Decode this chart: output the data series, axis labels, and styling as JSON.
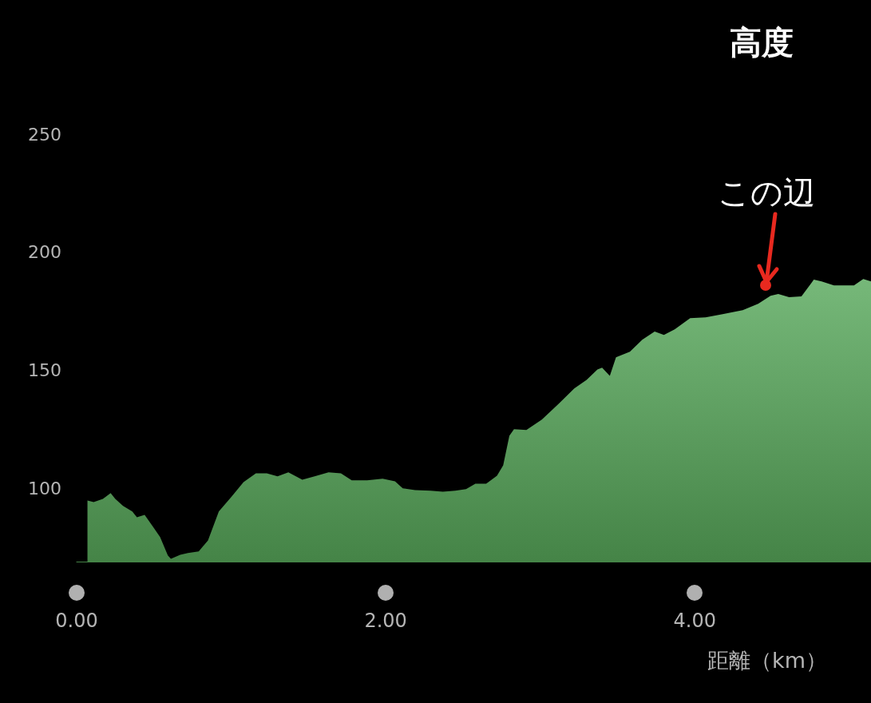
{
  "chart_data": {
    "type": "area",
    "title": "高度",
    "xlabel": "距離（km）",
    "x": [
      0.07,
      0.11,
      0.17,
      0.22,
      0.25,
      0.3,
      0.36,
      0.39,
      0.44,
      0.49,
      0.54,
      0.59,
      0.61,
      0.67,
      0.72,
      0.79,
      0.85,
      0.92,
      1.0,
      1.08,
      1.16,
      1.23,
      1.3,
      1.37,
      1.46,
      1.54,
      1.63,
      1.71,
      1.78,
      1.88,
      1.98,
      2.06,
      2.11,
      2.19,
      2.29,
      2.37,
      2.45,
      2.52,
      2.58,
      2.65,
      2.72,
      2.76,
      2.8,
      2.83,
      2.91,
      3.01,
      3.12,
      3.22,
      3.3,
      3.37,
      3.4,
      3.45,
      3.49,
      3.58,
      3.66,
      3.74,
      3.8,
      3.87,
      3.97,
      4.07,
      4.18,
      4.31,
      4.41,
      4.49,
      4.54,
      4.61,
      4.69,
      4.77,
      4.82,
      4.9,
      5.03,
      5.09,
      5.14
    ],
    "series": [
      {
        "color": "#58a95b",
        "values": [
          94.9,
          94.2,
          95.6,
          98.0,
          95.6,
          92.6,
          90.2,
          87.8,
          88.8,
          84.1,
          79.4,
          71.6,
          70.2,
          71.9,
          72.6,
          73.3,
          78.0,
          90.2,
          96.3,
          102.7,
          106.4,
          106.4,
          105.1,
          106.8,
          103.7,
          105.1,
          106.8,
          106.4,
          103.4,
          103.4,
          104.1,
          103.0,
          100.0,
          99.3,
          99.0,
          98.6,
          99.0,
          99.7,
          102.0,
          102.0,
          105.4,
          109.8,
          122.3,
          125.1,
          124.7,
          129.1,
          135.9,
          142.3,
          146.0,
          150.4,
          151.1,
          147.7,
          155.5,
          157.9,
          163.0,
          166.4,
          165.0,
          167.4,
          172.1,
          172.4,
          173.8,
          175.5,
          178.2,
          181.6,
          182.3,
          181.0,
          181.3,
          188.4,
          187.7,
          186.0,
          186.0,
          188.7,
          187.7
        ]
      }
    ],
    "xlim": [
      0,
      5.14
    ],
    "ylim": [
      69,
      250
    ],
    "xticks": [
      {
        "value": 0,
        "label": "0.00"
      },
      {
        "value": 2,
        "label": "2.00"
      },
      {
        "value": 4,
        "label": "4.00"
      }
    ],
    "yticks": [
      100,
      150,
      200,
      250
    ],
    "grid": false,
    "annotations": [
      {
        "text": "この辺",
        "x": 4.46,
        "y": 186
      }
    ]
  }
}
